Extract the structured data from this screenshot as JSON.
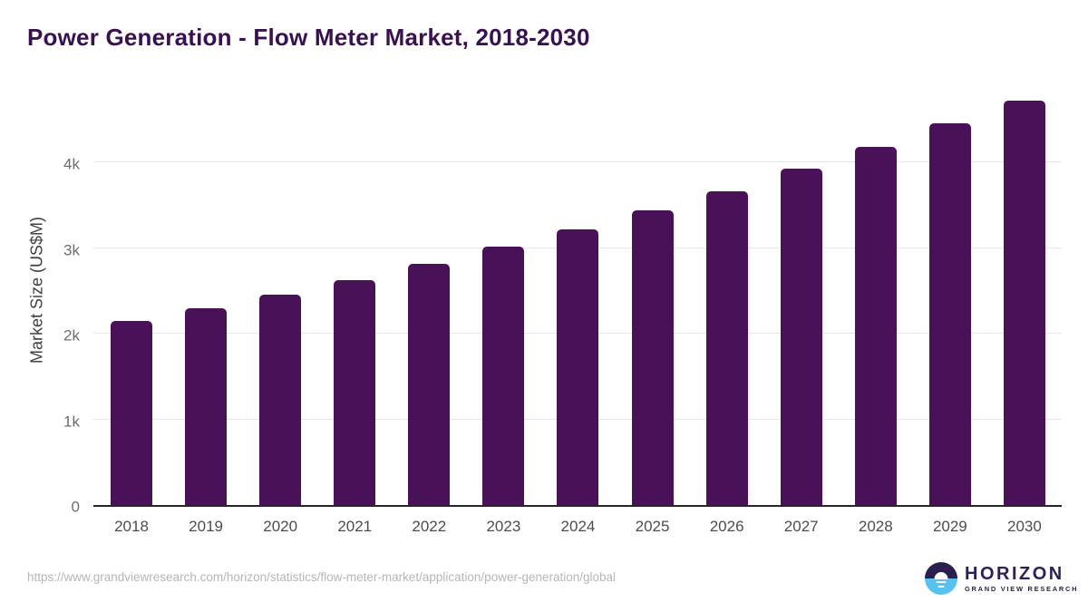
{
  "title": "Power Generation - Flow Meter Market, 2018-2030",
  "chart_data": {
    "type": "bar",
    "title": "Power Generation - Flow Meter Market, 2018-2030",
    "categories": [
      "2018",
      "2019",
      "2020",
      "2021",
      "2022",
      "2023",
      "2024",
      "2025",
      "2026",
      "2027",
      "2028",
      "2029",
      "2030"
    ],
    "values": [
      2150,
      2300,
      2460,
      2630,
      2820,
      3020,
      3220,
      3440,
      3670,
      3930,
      4180,
      4460,
      4730
    ],
    "xlabel": "",
    "ylabel": "Market Size (US$M)",
    "ylim": [
      0,
      5000
    ],
    "yticks": [
      {
        "value": 0,
        "label": "0"
      },
      {
        "value": 1000,
        "label": "1k"
      },
      {
        "value": 2000,
        "label": "2k"
      },
      {
        "value": 3000,
        "label": "3k"
      },
      {
        "value": 4000,
        "label": "4k"
      }
    ],
    "grid": "horizontal",
    "legend": false,
    "bar_color": "#481158",
    "title_color": "#3a1150",
    "gridline_color": "#e7e7e7",
    "axis_line_color": "#262626"
  },
  "footer": {
    "source_url": "https://www.grandviewresearch.com/horizon/statistics/flow-meter-market/application/power-generation/global",
    "logo": {
      "wordmark": "HORIZON",
      "subtitle": "GRAND VIEW RESEARCH",
      "circle_top_color": "#2a1f4e",
      "circle_bottom_color": "#57c1ef"
    }
  }
}
